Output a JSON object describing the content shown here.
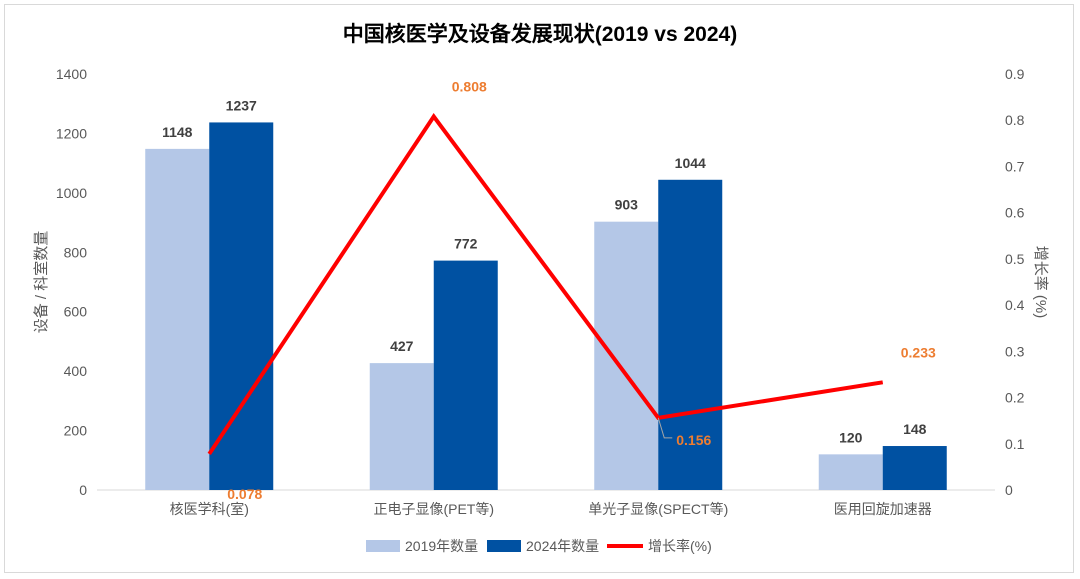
{
  "chart_data": {
    "type": "bar+line",
    "title": "中国核医学及设备发展现状(2019 vs 2024)",
    "categories": [
      "核医学科(室)",
      "正电子显像(PET等)",
      "单光子显像(SPECT等)",
      "医用回旋加速器"
    ],
    "series": [
      {
        "name": "2019年数量",
        "type": "bar",
        "axis": "left",
        "color": "#b4c7e7",
        "values": [
          1148,
          427,
          903,
          120
        ]
      },
      {
        "name": "2024年数量",
        "type": "bar",
        "axis": "left",
        "color": "#0051a2",
        "values": [
          1237,
          772,
          1044,
          148
        ]
      },
      {
        "name": "增长率(%)",
        "type": "line",
        "axis": "right",
        "color": "#ff0000",
        "label_color": "#ed7d31",
        "values": [
          0.078,
          0.808,
          0.156,
          0.233
        ]
      }
    ],
    "ylabel": "设备 / 科室数量",
    "y2label": "增长率 (%)",
    "ylim": [
      0,
      1400
    ],
    "y2lim": [
      0,
      0.9
    ],
    "yticks": [
      "0",
      "200",
      "400",
      "600",
      "800",
      "1000",
      "1200",
      "1400"
    ],
    "y2ticks": [
      "0",
      "0.1",
      "0.2",
      "0.3",
      "0.4",
      "0.5",
      "0.6",
      "0.7",
      "0.8",
      "0.9"
    ],
    "legend_position": "bottom",
    "grid": false
  }
}
